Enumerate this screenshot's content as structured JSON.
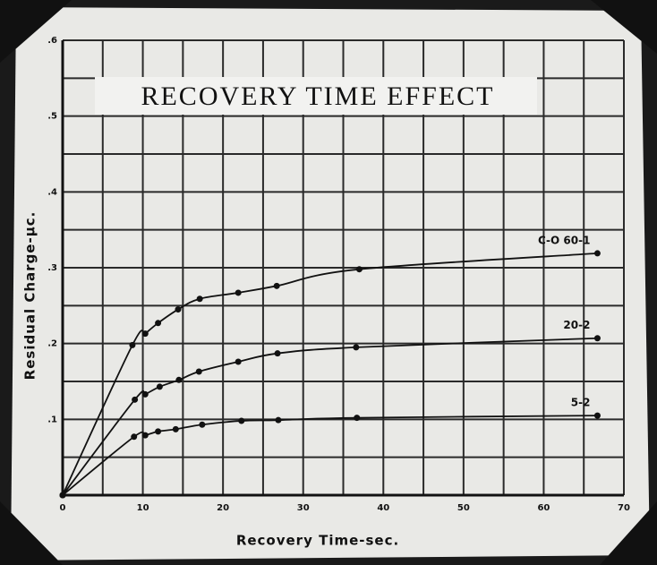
{
  "chart_data": {
    "type": "line",
    "title": "RECOVERY TIME EFFECT",
    "x_label": "Recovery Time-sec.",
    "y_label": "Residual Charge-μc.",
    "xlim": [
      0,
      70
    ],
    "xticks": [
      0,
      10,
      20,
      30,
      40,
      50,
      60,
      70
    ],
    "ylim": [
      0,
      0.6
    ],
    "yticks": [
      {
        "value": 0.1,
        "label": ".1"
      },
      {
        "value": 0.2,
        "label": ".2"
      },
      {
        "value": 0.3,
        "label": ".3"
      },
      {
        "value": 0.4,
        "label": ".4"
      },
      {
        "value": 0.5,
        "label": ".5"
      },
      {
        "value": 0.6,
        "label": ".6"
      }
    ],
    "grid": true,
    "series": [
      {
        "name": "C-O 60-1",
        "color": "#111111",
        "x": [
          0,
          8.7,
          10.3,
          11.9,
          14.4,
          17.1,
          21.9,
          26.7,
          37,
          66.7
        ],
        "values": [
          0,
          0.198,
          0.213,
          0.227,
          0.245,
          0.259,
          0.267,
          0.276,
          0.298,
          0.319
        ]
      },
      {
        "name": "20-2",
        "color": "#111111",
        "x": [
          0,
          9,
          10.3,
          12.1,
          14.5,
          17,
          21.9,
          26.8,
          36.6,
          66.7
        ],
        "values": [
          0,
          0.126,
          0.133,
          0.143,
          0.152,
          0.163,
          0.176,
          0.187,
          0.195,
          0.207
        ]
      },
      {
        "name": "5-2",
        "color": "#111111",
        "x": [
          0,
          8.9,
          10.3,
          11.9,
          14.1,
          17.4,
          22.3,
          26.9,
          36.7,
          66.7
        ],
        "values": [
          0,
          0.077,
          0.079,
          0.084,
          0.087,
          0.093,
          0.098,
          0.099,
          0.102,
          0.105
        ]
      }
    ]
  }
}
